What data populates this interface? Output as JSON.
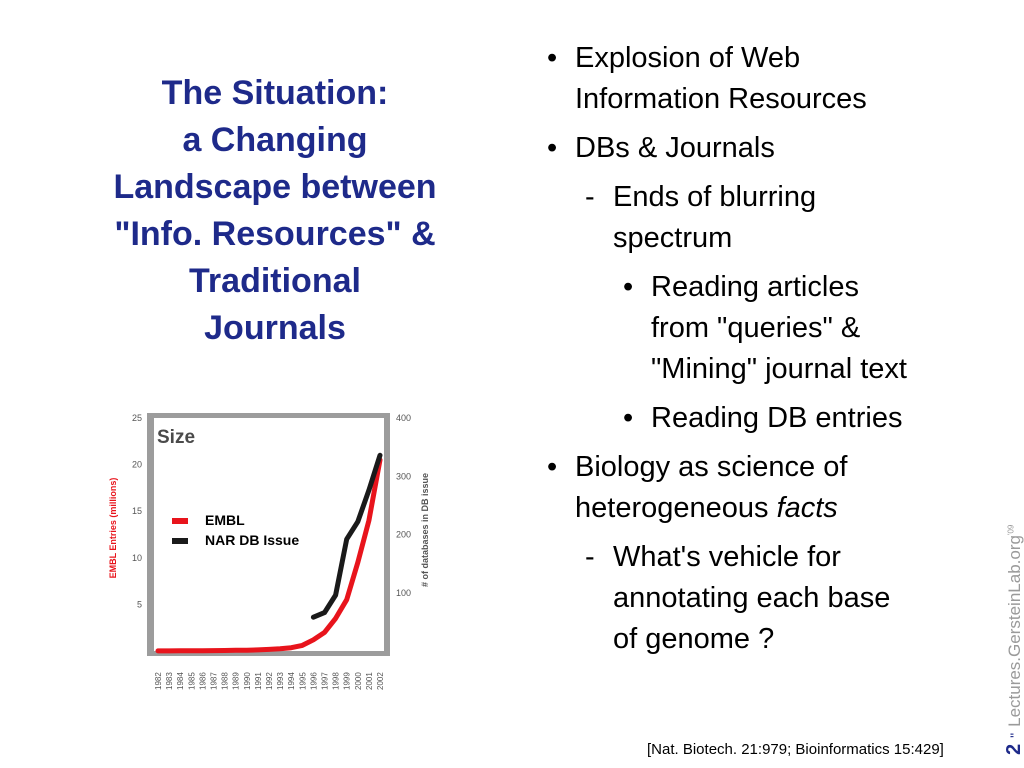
{
  "slide": {
    "title_lines": [
      "The Situation:",
      "a Changing",
      "Landscape between",
      "\"Info. Resources\" &",
      "Traditional",
      "Journals"
    ],
    "bullets": {
      "b1": [
        "Explosion of Web",
        "Information Resources"
      ],
      "b2": [
        "DBs & Journals"
      ],
      "b2_1": [
        "Ends of blurring",
        "spectrum"
      ],
      "b2_1_1": [
        "Reading articles",
        "from \"queries\" &",
        "\"Mining\" journal text"
      ],
      "b2_1_2": [
        "Reading DB entries"
      ],
      "b3_line1": "Biology as science of",
      "b3_line2_prefix": "heterogeneous ",
      "b3_line2_italic": "facts",
      "b3_1": [
        "What's vehicle for",
        "annotating each base",
        "of genome ?"
      ]
    },
    "markers": {
      "bullet": "•",
      "dash": "-"
    },
    "citation": "[Nat. Biotech. 21:979; Bioinformatics 15:429]",
    "sidebar": {
      "page_number": "2",
      "separator": "\"",
      "site": "Lectures.GersteinLab.org",
      "suffix": "'09"
    }
  },
  "chart_data": {
    "type": "line",
    "title": "Size",
    "categories": [
      "1982",
      "1983",
      "1984",
      "1985",
      "1986",
      "1987",
      "1988",
      "1989",
      "1990",
      "1991",
      "1992",
      "1993",
      "1994",
      "1995",
      "1996",
      "1997",
      "1998",
      "1999",
      "2000",
      "2001",
      "2002"
    ],
    "ylabel": "EMBL Entries (millions)",
    "ylabel_right": "# of databases in DB issue",
    "y_ticks": [
      "5",
      "10",
      "15",
      "20",
      "25"
    ],
    "y_right_ticks": [
      "100",
      "200",
      "300",
      "400"
    ],
    "ylim": [
      0,
      25
    ],
    "ylim_right": [
      0,
      400
    ],
    "grid": false,
    "legend_position": "left",
    "series": [
      {
        "name": "EMBL",
        "color": "#e8141c",
        "axis": "left",
        "x": [
          "1982",
          "1983",
          "1984",
          "1985",
          "1986",
          "1987",
          "1988",
          "1989",
          "1990",
          "1991",
          "1992",
          "1993",
          "1994",
          "1995",
          "1996",
          "1997",
          "1998",
          "1999",
          "2000",
          "2001",
          "2002"
        ],
        "values": [
          0.01,
          0.01,
          0.02,
          0.02,
          0.03,
          0.04,
          0.05,
          0.07,
          0.09,
          0.12,
          0.17,
          0.25,
          0.35,
          0.6,
          1.2,
          2.0,
          3.5,
          5.5,
          9.5,
          14.0,
          20.5
        ]
      },
      {
        "name": "NAR DB Issue",
        "color": "#1a1a1a",
        "axis": "right",
        "x": [
          "1996",
          "1997",
          "1998",
          "1999",
          "2000",
          "2001",
          "2002"
        ],
        "values": [
          58,
          66,
          96,
          192,
          222,
          276,
          336
        ]
      }
    ]
  }
}
